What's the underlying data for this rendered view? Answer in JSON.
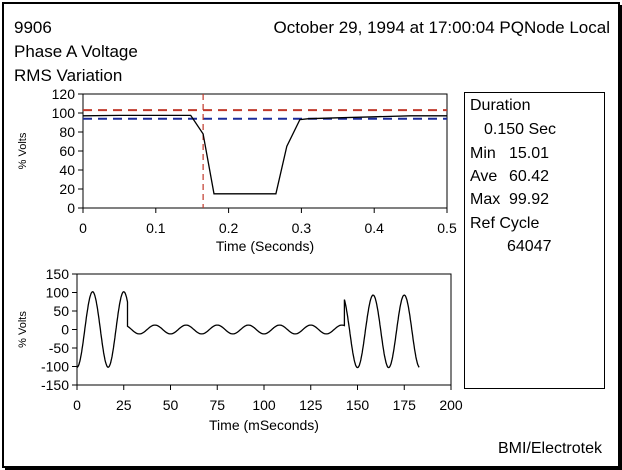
{
  "header": {
    "event_id": "9906",
    "timestamp": "October 29, 1994 at 17:00:04 PQNode Local",
    "title_line1": "Phase A Voltage",
    "title_line2": "RMS Variation"
  },
  "stats": {
    "duration_label": "Duration",
    "duration_value": "0.150 Sec",
    "min_label": "Min",
    "min_value": "15.01",
    "ave_label": "Ave",
    "ave_value": "60.42",
    "max_label": "Max",
    "max_value": "99.92",
    "ref_cycle_label": "Ref Cycle",
    "ref_cycle_value": "64047"
  },
  "footer": {
    "brand": "BMI/Electrotek"
  },
  "colors": {
    "upper_limit": "#c0392b",
    "lower_limit": "#1a2a9a",
    "trace": "#000000"
  },
  "chart_data": [
    {
      "type": "line",
      "xlabel": "Time (Seconds)",
      "ylabel": "% Volts",
      "xlim": [
        0,
        0.5
      ],
      "ylim": [
        0,
        120
      ],
      "xticks": [
        0,
        0.1,
        0.2,
        0.3,
        0.4,
        0.5
      ],
      "yticks": [
        0,
        20,
        40,
        60,
        80,
        100,
        120
      ],
      "grid": false,
      "series": [
        {
          "style": "solid",
          "x": [
            0,
            0.05,
            0.1,
            0.148,
            0.165,
            0.18,
            0.2,
            0.24,
            0.265,
            0.28,
            0.298,
            0.31,
            0.35,
            0.4,
            0.45,
            0.5
          ],
          "y": [
            97,
            97.5,
            97.5,
            97.5,
            78,
            15,
            15,
            15,
            15,
            65,
            93,
            94,
            95,
            96,
            97,
            97
          ]
        }
      ],
      "reference_lines": [
        {
          "style": "dashed",
          "color": "upper_limit",
          "y": 103
        },
        {
          "style": "dashed",
          "color": "lower_limit",
          "y": 94
        },
        {
          "style": "dashed",
          "color": "upper_limit",
          "x": 0.165,
          "orientation": "vertical"
        }
      ]
    },
    {
      "type": "line",
      "xlabel": "Time (mSeconds)",
      "ylabel": "% Volts",
      "xlim": [
        0,
        200
      ],
      "ylim": [
        -150,
        150
      ],
      "xticks": [
        0,
        25,
        50,
        75,
        100,
        125,
        150,
        175,
        200
      ],
      "yticks": [
        -150,
        -100,
        -50,
        0,
        50,
        100,
        150
      ],
      "grid": false,
      "series": [
        {
          "style": "solid",
          "waveform_segments": [
            {
              "t_start": 0,
              "t_end": 27,
              "amplitude": 102,
              "frequency_hz": 60,
              "phase_deg": 270,
              "offset": 0
            },
            {
              "t_start": 27,
              "t_end": 143,
              "amplitude": 12,
              "frequency_hz": 60,
              "phase_deg": 270,
              "offset": 0
            },
            {
              "t_start": 143,
              "t_end": 183,
              "amplitude": 98,
              "frequency_hz": 60,
              "phase_deg": 270,
              "offset": -5
            }
          ]
        }
      ]
    }
  ]
}
